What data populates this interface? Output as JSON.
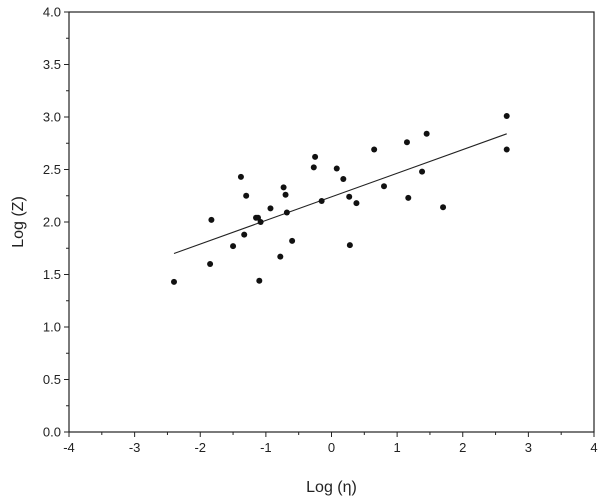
{
  "chart_data": {
    "type": "scatter",
    "xlabel": "Log (η)",
    "ylabel": "Log (Z)",
    "xlim": [
      -4,
      4
    ],
    "ylim": [
      0.0,
      4.0
    ],
    "xticks": [
      "-4",
      "-3",
      "-2",
      "-1",
      "0",
      "1",
      "2",
      "3",
      "4"
    ],
    "yticks": [
      "0.0",
      "0.5",
      "1.0",
      "1.5",
      "2.0",
      "2.5",
      "3.0",
      "3.5",
      "4.0"
    ],
    "grid": false,
    "legend": "none",
    "point_color": "#111111",
    "points": [
      [
        -2.4,
        1.43
      ],
      [
        -1.85,
        1.6
      ],
      [
        -1.83,
        2.02
      ],
      [
        -1.5,
        1.77
      ],
      [
        -1.38,
        2.43
      ],
      [
        -1.33,
        1.88
      ],
      [
        -1.3,
        2.25
      ],
      [
        -1.15,
        2.04
      ],
      [
        -1.12,
        2.04
      ],
      [
        -1.1,
        1.44
      ],
      [
        -1.08,
        2.0
      ],
      [
        -0.93,
        2.13
      ],
      [
        -0.78,
        1.67
      ],
      [
        -0.73,
        2.33
      ],
      [
        -0.7,
        2.26
      ],
      [
        -0.68,
        2.09
      ],
      [
        -0.6,
        1.82
      ],
      [
        -0.27,
        2.52
      ],
      [
        -0.25,
        2.62
      ],
      [
        -0.15,
        2.2
      ],
      [
        0.08,
        2.51
      ],
      [
        0.18,
        2.41
      ],
      [
        0.27,
        2.24
      ],
      [
        0.28,
        1.78
      ],
      [
        0.38,
        2.18
      ],
      [
        0.65,
        2.69
      ],
      [
        0.8,
        2.34
      ],
      [
        1.15,
        2.76
      ],
      [
        1.17,
        2.23
      ],
      [
        1.38,
        2.48
      ],
      [
        1.45,
        2.84
      ],
      [
        1.7,
        2.14
      ],
      [
        2.67,
        3.01
      ],
      [
        2.67,
        2.69
      ]
    ],
    "fit_line": {
      "x": [
        -2.4,
        2.67
      ],
      "y": [
        1.7,
        2.84
      ]
    }
  }
}
